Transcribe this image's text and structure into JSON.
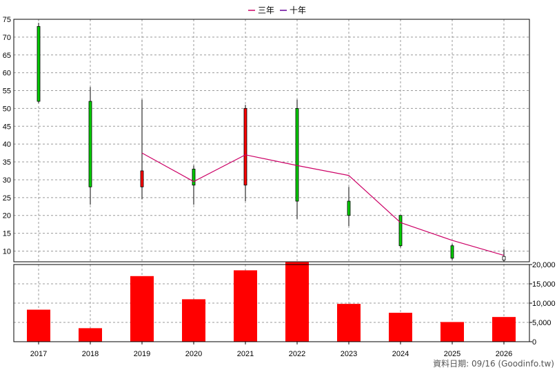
{
  "chart_data": [
    {
      "type": "candlestick",
      "legend": [
        {
          "name": "三年",
          "color": "#cc0066"
        },
        {
          "name": "十年",
          "color": "#660099"
        }
      ],
      "legend_position": "top-center",
      "grid": true,
      "categories": [
        "2017",
        "2018",
        "2019",
        "2020",
        "2021",
        "2022",
        "2023",
        "2024",
        "2025",
        "2026"
      ],
      "ylim": [
        7,
        75
      ],
      "yticks": [
        10,
        15,
        20,
        25,
        30,
        35,
        40,
        45,
        50,
        55,
        60,
        65,
        70,
        75
      ],
      "candles": [
        {
          "x": "2017",
          "open": 73,
          "high": 74,
          "low": 51.5,
          "close": 52,
          "color": "#00cc00"
        },
        {
          "x": "2018",
          "open": 52,
          "high": 56,
          "low": 23,
          "close": 28,
          "color": "#00cc00"
        },
        {
          "x": "2019",
          "open": 28,
          "high": 52.5,
          "low": 24.5,
          "close": 32.5,
          "color": "#ff0000"
        },
        {
          "x": "2020",
          "open": 33,
          "high": 34,
          "low": 23,
          "close": 28.5,
          "color": "#00cc00"
        },
        {
          "x": "2021",
          "open": 28.5,
          "high": 51,
          "low": 24,
          "close": 50,
          "color": "#ff0000"
        },
        {
          "x": "2022",
          "open": 50,
          "high": 52.5,
          "low": 19,
          "close": 24,
          "color": "#00cc00"
        },
        {
          "x": "2023",
          "open": 24,
          "high": 28,
          "low": 17,
          "close": 20,
          "color": "#00cc00"
        },
        {
          "x": "2024",
          "open": 20,
          "high": 20,
          "low": 11,
          "close": 11.5,
          "color": "#00cc00"
        },
        {
          "x": "2025",
          "open": 11.5,
          "high": 12,
          "low": 7.5,
          "close": 8,
          "color": "#00cc00"
        },
        {
          "x": "2026",
          "open": 8.5,
          "high": 10.5,
          "low": 7,
          "close": 7.5,
          "color": "#ffffff"
        }
      ],
      "series": [
        {
          "name": "三年",
          "color": "#cc0066",
          "points": [
            [
              "2019",
              37.5
            ],
            [
              "2020",
              29.5
            ],
            [
              "2021",
              37
            ],
            [
              "2022",
              34
            ],
            [
              "2023",
              31.2
            ],
            [
              "2024",
              18
            ],
            [
              "2025",
              13
            ],
            [
              "2026",
              8.8
            ]
          ]
        }
      ]
    },
    {
      "type": "bar",
      "categories": [
        "2017",
        "2018",
        "2019",
        "2020",
        "2021",
        "2022",
        "2023",
        "2024",
        "2025",
        "2026"
      ],
      "values": [
        8300,
        3500,
        17000,
        11000,
        18500,
        21000,
        9800,
        7500,
        5100,
        6400
      ],
      "ylim": [
        0,
        20000
      ],
      "yticks": [
        0,
        5000,
        10000,
        15000,
        20000
      ],
      "ytick_labels": [
        "0",
        "5,000",
        "10,000",
        "15,000",
        "20,000"
      ],
      "bar_color": "#ff0000"
    }
  ],
  "footer": "資料日期: 09/16  (Goodinfo.tw)"
}
